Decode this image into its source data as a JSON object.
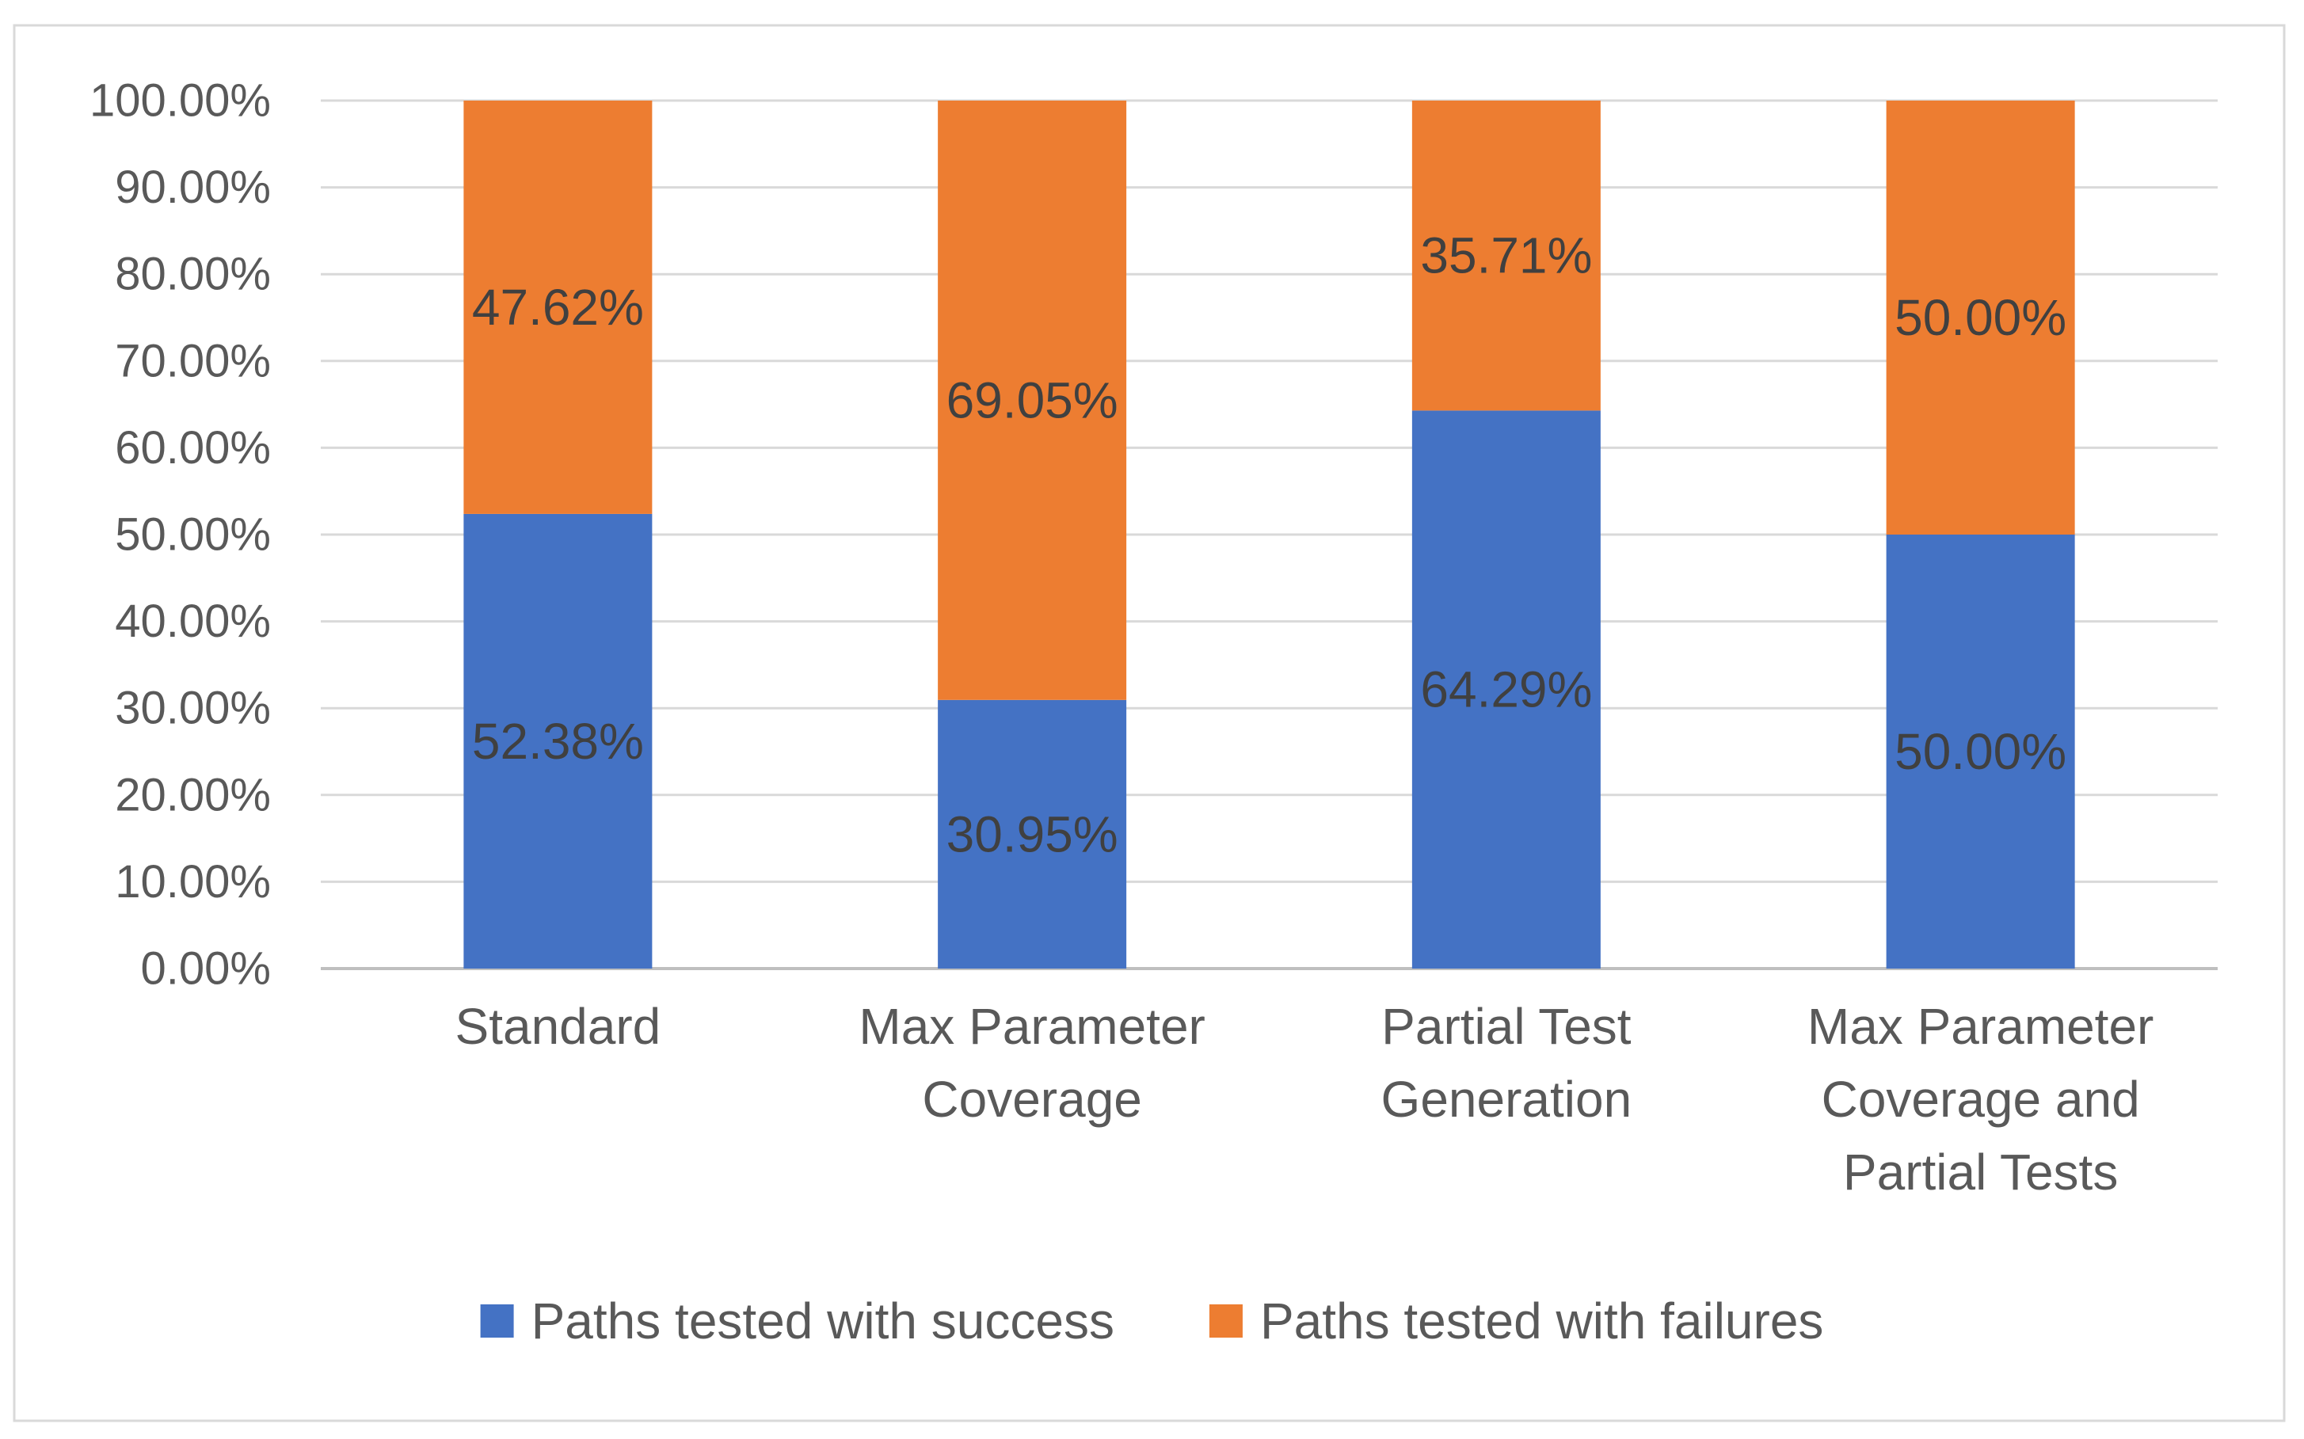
{
  "chart_data": {
    "type": "bar",
    "stacked": true,
    "title": "",
    "xlabel": "",
    "ylabel": "",
    "ylim": [
      0,
      100
    ],
    "ytick_step": 10,
    "ytick_labels": [
      "0.00%",
      "10.00%",
      "20.00%",
      "30.00%",
      "40.00%",
      "50.00%",
      "60.00%",
      "70.00%",
      "80.00%",
      "90.00%",
      "100.00%"
    ],
    "grid": true,
    "legend_position": "bottom",
    "categories": [
      [
        "Standard"
      ],
      [
        "Max Parameter",
        "Coverage"
      ],
      [
        "Partial Test",
        "Generation"
      ],
      [
        "Max Parameter",
        "Coverage and",
        "Partial Tests"
      ]
    ],
    "series": [
      {
        "name": "Paths tested with success",
        "color": "#4472C4",
        "values": [
          52.38,
          30.95,
          64.29,
          50.0
        ],
        "labels": [
          "52.38%",
          "30.95%",
          "64.29%",
          "50.00%"
        ]
      },
      {
        "name": "Paths tested with failures",
        "color": "#ED7D31",
        "values": [
          47.62,
          69.05,
          35.71,
          50.0
        ],
        "labels": [
          "47.62%",
          "69.05%",
          "35.71%",
          "50.00%"
        ]
      }
    ]
  }
}
